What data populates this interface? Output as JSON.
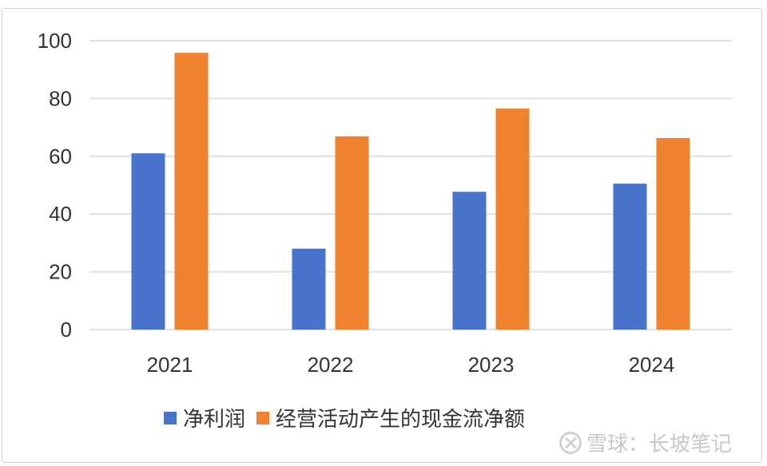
{
  "chart_data": {
    "type": "bar",
    "categories": [
      "2021",
      "2022",
      "2023",
      "2024"
    ],
    "series": [
      {
        "name": "净利润",
        "values": [
          61.0,
          28.0,
          47.7,
          50.5
        ],
        "color": "#4874CB"
      },
      {
        "name": "经营活动产生的现金流净额",
        "values": [
          95.8,
          66.9,
          76.5,
          66.3
        ],
        "color": "#EE822F"
      }
    ],
    "ylim": [
      0,
      100
    ],
    "yticks": [
      0,
      20,
      40,
      60,
      80,
      100
    ],
    "grid": true,
    "legend": "bottom",
    "title": "",
    "xlabel": "",
    "ylabel": ""
  },
  "watermark": "雪球：长坡笔记"
}
